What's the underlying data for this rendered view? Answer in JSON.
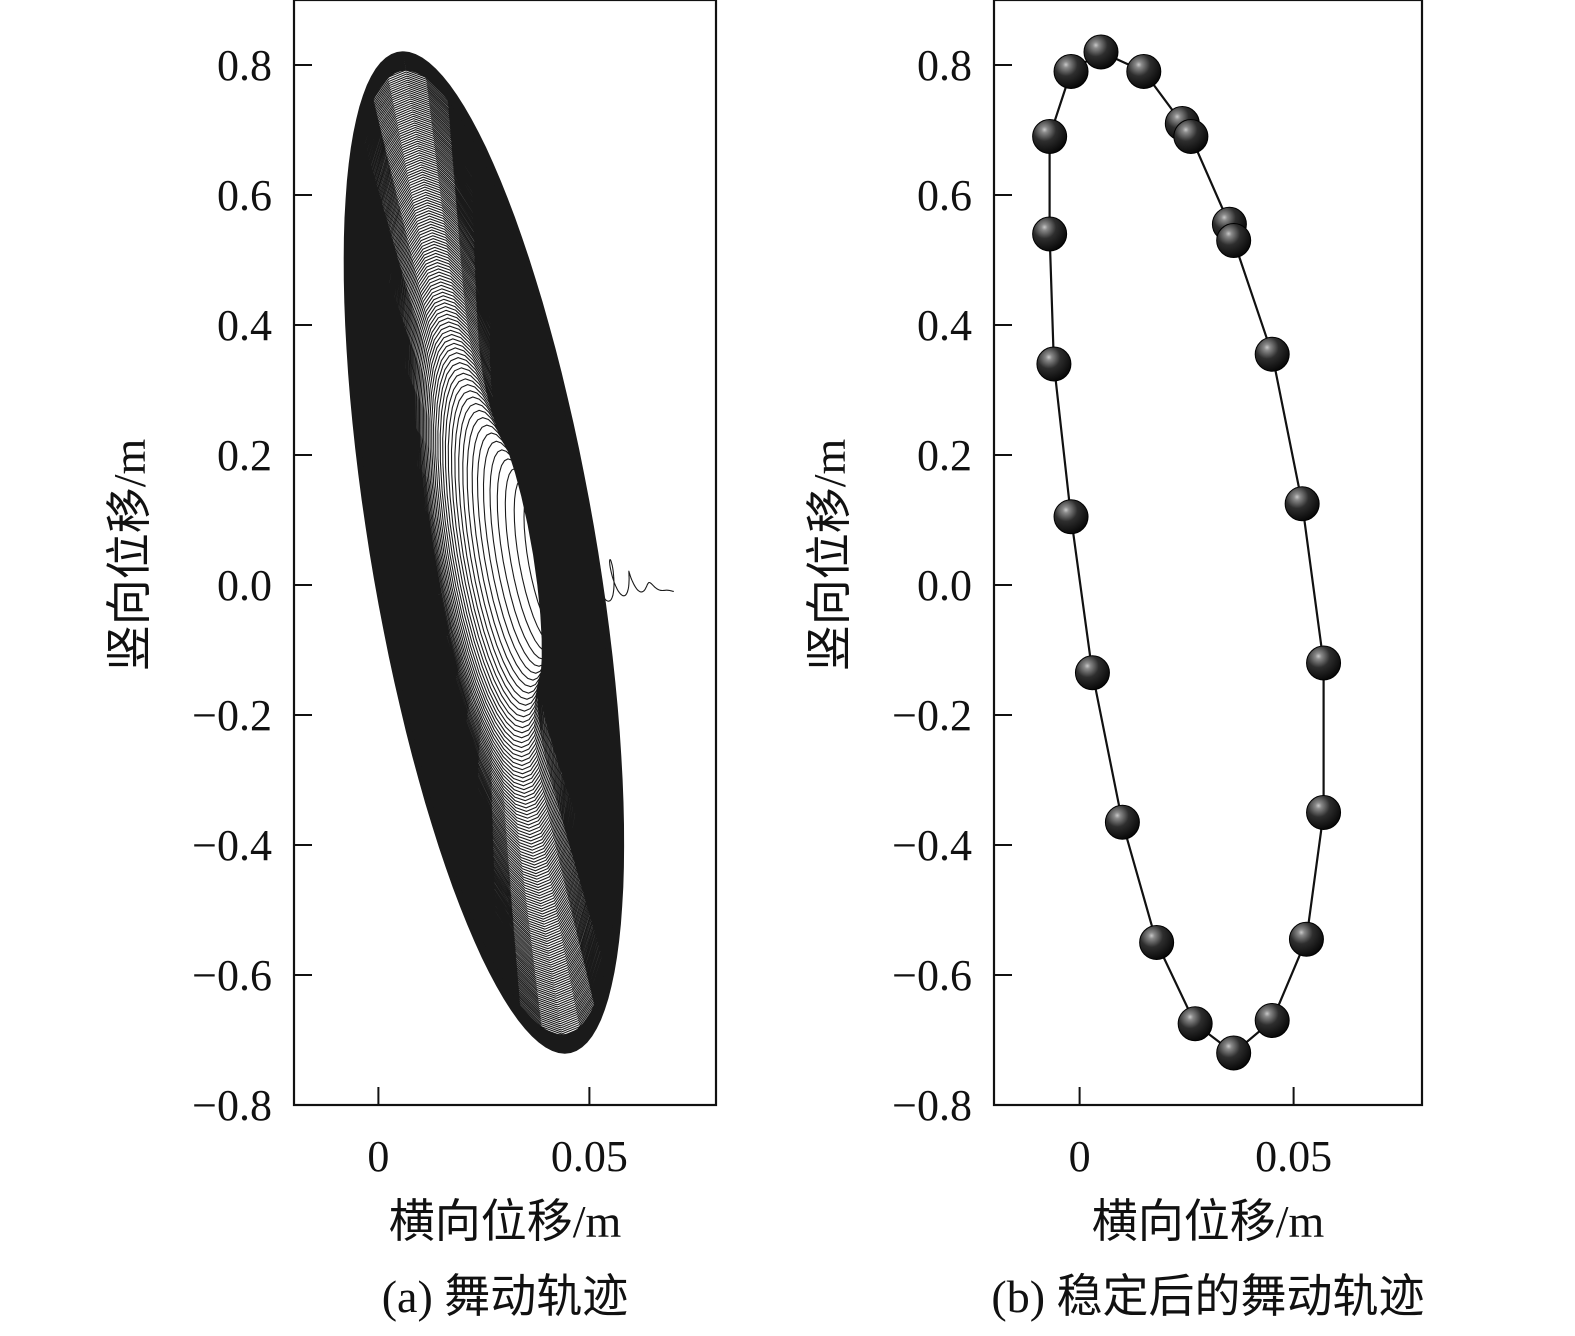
{
  "chart_data": [
    {
      "type": "line",
      "caption": "(a) 舞动轨迹",
      "xlabel": "横向位移/m",
      "ylabel": "竖向位移/m",
      "xlim": [
        -0.02,
        0.08
      ],
      "ylim": [
        -0.8,
        0.9
      ],
      "xticks": [
        0,
        0.05
      ],
      "xtick_labels": [
        "0",
        "0.05"
      ],
      "yticks": [
        0.8,
        0.6,
        0.4,
        0.2,
        0.0,
        -0.2,
        -0.4,
        -0.6,
        -0.8
      ],
      "ytick_labels": [
        "0.8",
        "0.6",
        "0.4",
        "0.2",
        "0.0",
        "−0.2",
        "−0.4",
        "−0.6",
        "−0.8"
      ],
      "series": [
        {
          "description_of_motion": "spiral trajectory growing from near origin to a stable ellipse",
          "start_point": [
            0.07,
            -0.01
          ],
          "final_ellipse_extent": {
            "x": [
              -0.008,
              0.058
            ],
            "y": [
              -0.72,
              0.82
            ]
          }
        }
      ]
    },
    {
      "type": "scatter",
      "caption": "(b) 稳定后的舞动轨迹",
      "xlabel": "横向位移/m",
      "ylabel": "竖向位移/m",
      "xlim": [
        -0.02,
        0.08
      ],
      "ylim": [
        -0.8,
        0.9
      ],
      "xticks": [
        0,
        0.05
      ],
      "xtick_labels": [
        "0",
        "0.05"
      ],
      "yticks": [
        0.8,
        0.6,
        0.4,
        0.2,
        0.0,
        -0.2,
        -0.4,
        -0.6,
        -0.8
      ],
      "ytick_labels": [
        "0.8",
        "0.6",
        "0.4",
        "0.2",
        "0.0",
        "−0.2",
        "−0.4",
        "−0.6",
        "−0.8"
      ],
      "series": [
        {
          "points": [
            [
              0.005,
              0.82
            ],
            [
              0.015,
              0.79
            ],
            [
              0.024,
              0.71
            ],
            [
              0.026,
              0.69
            ],
            [
              0.035,
              0.555
            ],
            [
              0.036,
              0.53
            ],
            [
              0.045,
              0.355
            ],
            [
              0.052,
              0.125
            ],
            [
              0.057,
              -0.12
            ],
            [
              0.057,
              -0.35
            ],
            [
              0.053,
              -0.545
            ],
            [
              0.045,
              -0.67
            ],
            [
              0.036,
              -0.72
            ],
            [
              0.027,
              -0.675
            ],
            [
              0.018,
              -0.55
            ],
            [
              0.01,
              -0.365
            ],
            [
              0.003,
              -0.135
            ],
            [
              -0.002,
              0.105
            ],
            [
              -0.006,
              0.34
            ],
            [
              -0.007,
              0.54
            ],
            [
              -0.007,
              0.69
            ],
            [
              -0.002,
              0.79
            ]
          ]
        }
      ]
    }
  ]
}
